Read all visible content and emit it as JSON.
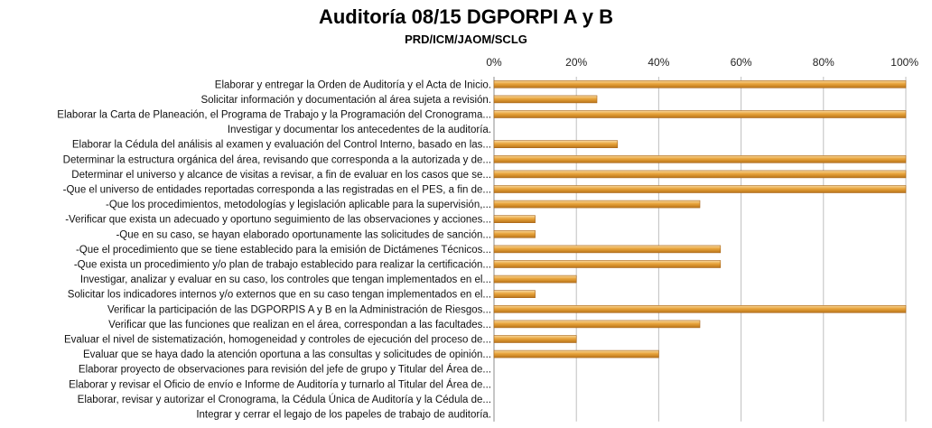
{
  "chart_data": {
    "type": "bar",
    "orientation": "horizontal",
    "title": "Auditoría 08/15 DGPORPI A y B",
    "subtitle": "PRD/ICM/JAOM/SCLG",
    "xlim": [
      0,
      100
    ],
    "x_ticks": [
      "0%",
      "20%",
      "40%",
      "60%",
      "80%",
      "100%"
    ],
    "grid": true,
    "bar_color": "#E8A33A",
    "categories": [
      "Elaborar y entregar la Orden de Auditoría y el Acta de Inicio.",
      "Solicitar información y documentación al área sujeta a revisión.",
      "Elaborar la Carta de Planeación, el Programa de Trabajo y la Programación del Cronograma...",
      "Investigar y documentar los antecedentes de la auditoría.",
      "Elaborar la Cédula del análisis al examen y evaluación del Control Interno, basado en las...",
      "Determinar la estructura orgánica del área, revisando que corresponda a la autorizada y de...",
      "Determinar el universo y alcance de visitas a revisar, a fin de evaluar en los casos que se...",
      "-Que el universo de entidades reportadas corresponda a las registradas en el PES, a fin de...",
      "-Que los procedimientos, metodologías y legislación aplicable para la supervisión,...",
      "-Verificar que exista un adecuado y oportuno seguimiento de las observaciones y acciones...",
      "-Que en su caso, se hayan elaborado oportunamente las solicitudes de sanción...",
      "-Que el procedimiento que se tiene establecido para la emisión de Dictámenes Técnicos...",
      "-Que exista un procedimiento y/o plan de trabajo establecido para realizar la certificación...",
      "Investigar, analizar y evaluar en su caso, los controles que tengan implementados en el...",
      "Solicitar los indicadores internos y/o externos que en su caso tengan implementados en el...",
      "Verificar la participación de las DGPORPIS A y B en la Administración de Riesgos...",
      "Verificar que las funciones que realizan en el área, correspondan a las facultades...",
      "Evaluar el nivel de sistematización, homogeneidad y controles de ejecución del proceso de...",
      "Evaluar que se haya dado la atención oportuna a las consultas y solicitudes de opinión...",
      "Elaborar proyecto de observaciones para revisión del jefe de grupo y Titular del Área de...",
      "Elaborar y revisar el Oficio de envío e Informe de Auditoría y turnarlo al Titular del Área de...",
      "Elaborar, revisar y autorizar el Cronograma, la Cédula Única de Auditoría y la Cédula de...",
      "Integrar y cerrar el legajo de los papeles de trabajo de auditoría."
    ],
    "values": [
      100,
      25,
      100,
      0,
      30,
      100,
      100,
      100,
      50,
      10,
      10,
      55,
      55,
      20,
      10,
      100,
      50,
      20,
      40,
      0,
      0,
      0,
      0
    ]
  }
}
